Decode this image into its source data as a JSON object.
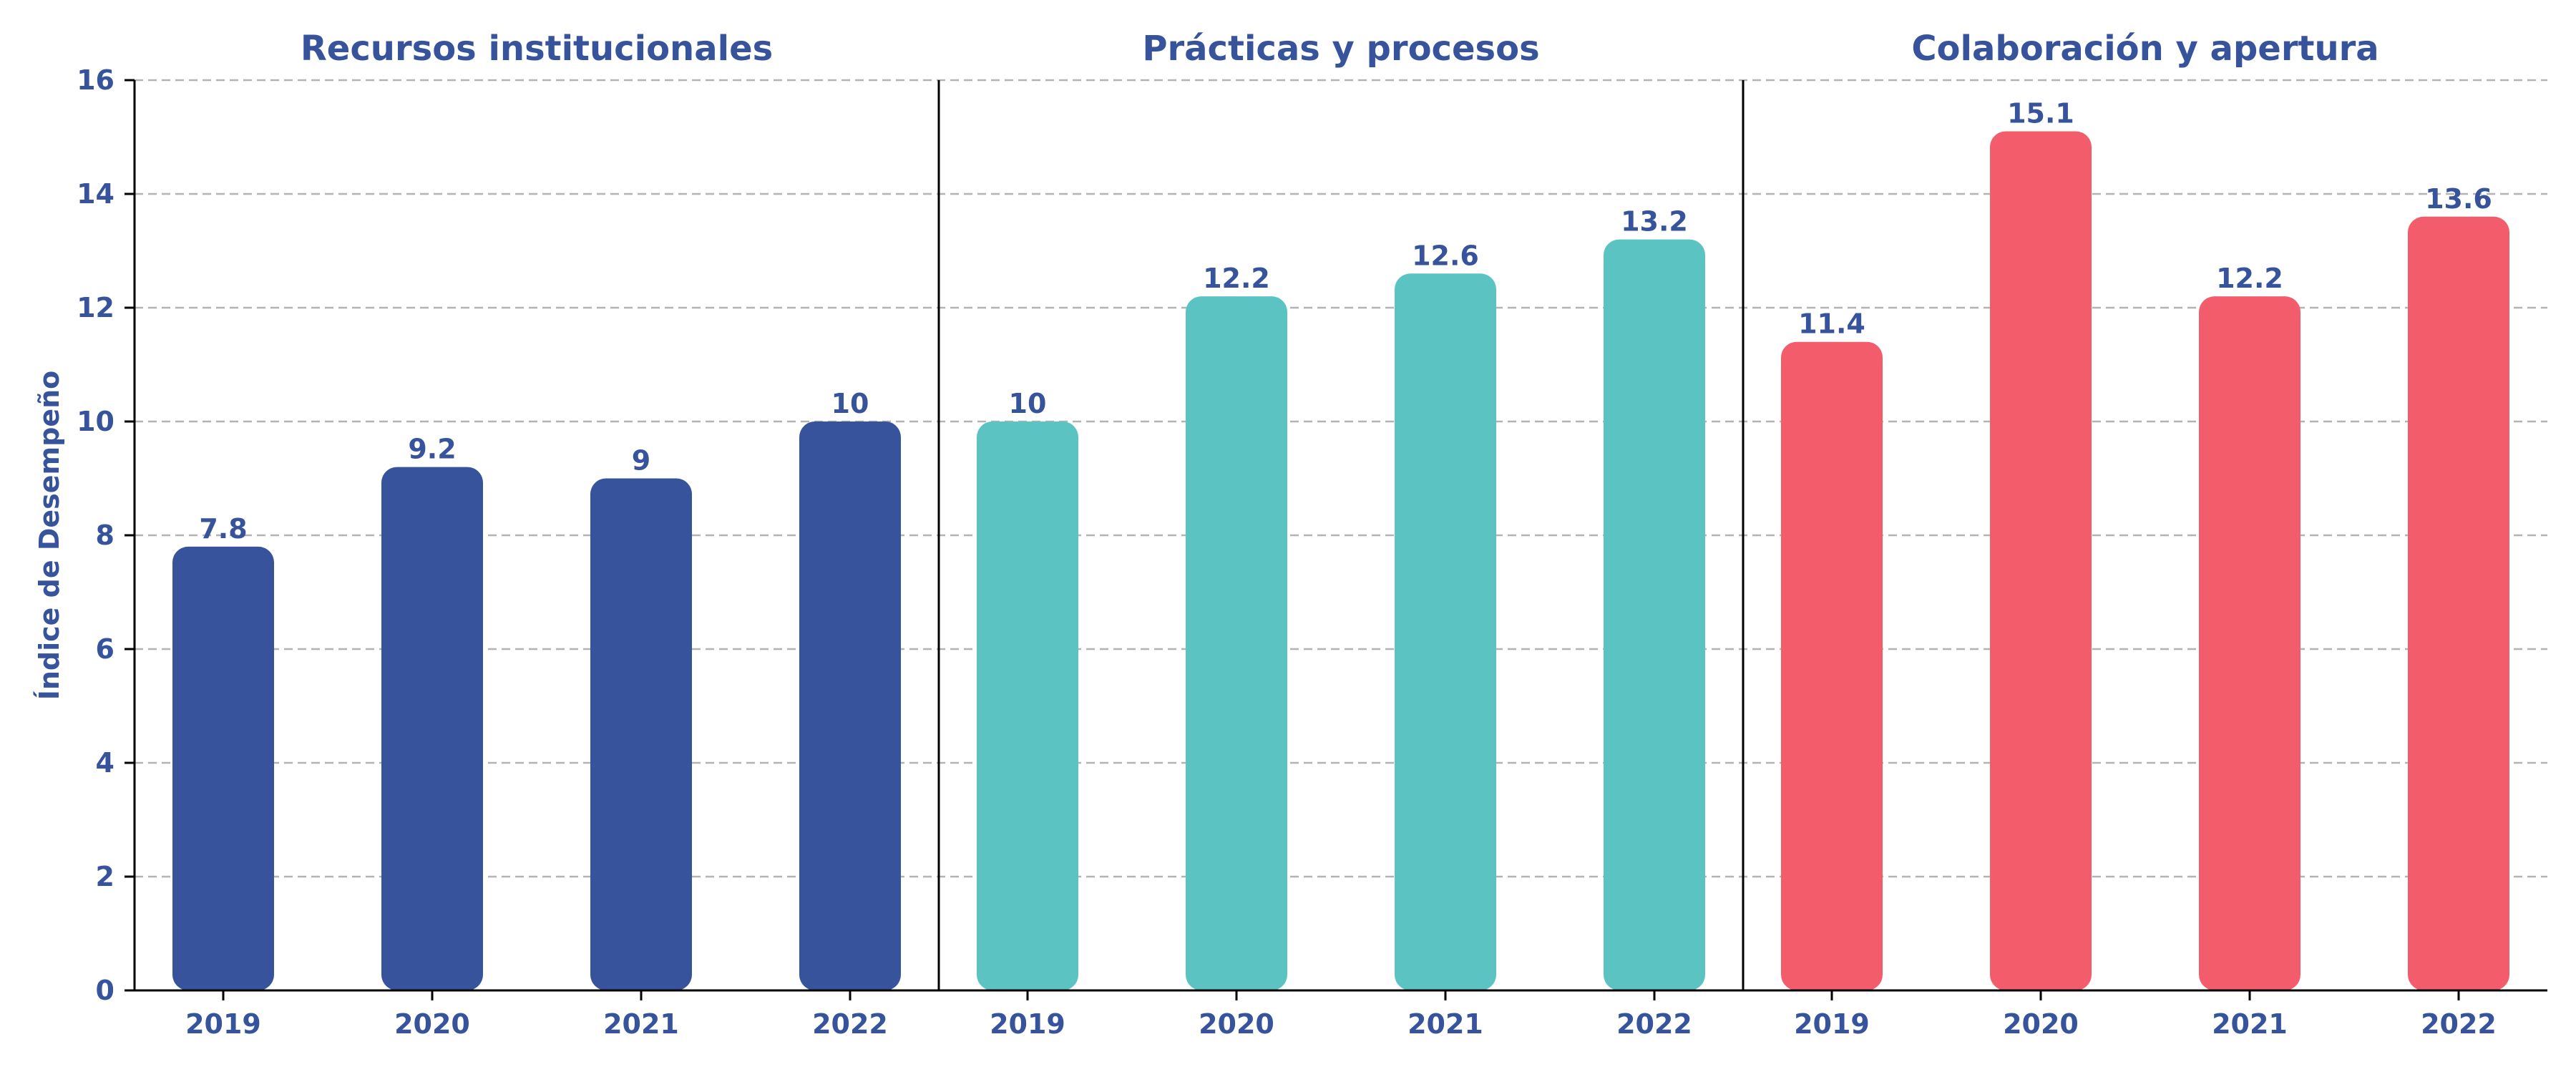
{
  "chart_data": {
    "type": "bar",
    "ylabel": "Índice de Desempeño",
    "ylim": [
      0,
      16
    ],
    "yticks": [
      0,
      2,
      4,
      6,
      8,
      10,
      12,
      14,
      16
    ],
    "grid": true,
    "legend": "none",
    "categories": [
      "2019",
      "2020",
      "2021",
      "2022"
    ],
    "panels": [
      {
        "title": "Recursos institucionales",
        "color": "#36539b",
        "values": [
          7.8,
          9.2,
          9,
          10
        ],
        "labels": [
          "7.8",
          "9.2",
          "9",
          "10"
        ]
      },
      {
        "title": "Prácticas y procesos",
        "color": "#5bc4c2",
        "values": [
          10,
          12.2,
          12.6,
          13.2
        ],
        "labels": [
          "10",
          "12.2",
          "12.6",
          "13.2"
        ]
      },
      {
        "title": "Colaboración y apertura",
        "color": "#f25c6b",
        "values": [
          11.4,
          15.1,
          12.2,
          13.6
        ],
        "labels": [
          "11.4",
          "15.1",
          "12.2",
          "13.6"
        ]
      }
    ],
    "text_color": "#36539b"
  }
}
